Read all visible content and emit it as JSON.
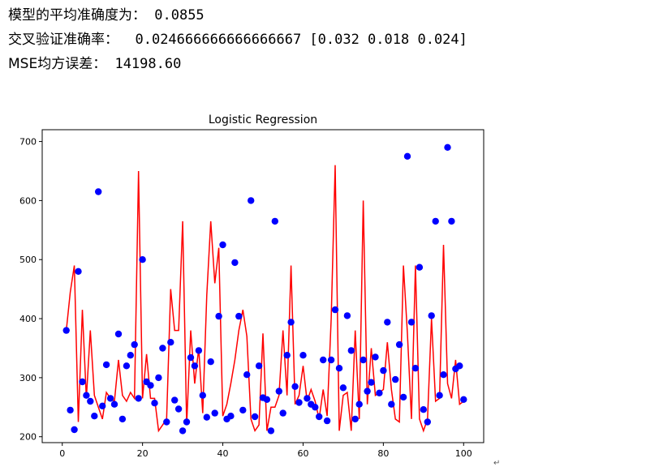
{
  "metrics": {
    "accuracy_label": "模型的平均准确度为：",
    "accuracy_value": "0.0855",
    "cv_label": "交叉验证准确率：",
    "cv_value": "0.024666666666666667 [0.032 0.018 0.024]",
    "mse_label": "MSE均方误差：",
    "mse_value": "14198.60"
  },
  "return_glyph": "↵",
  "chart_data": {
    "type": "scatter",
    "title": "Logistic Regression",
    "xlabel": "",
    "ylabel": "",
    "xlim": [
      -5,
      105
    ],
    "ylim": [
      190,
      720
    ],
    "xticks": [
      0,
      20,
      40,
      60,
      80,
      100
    ],
    "yticks": [
      200,
      300,
      400,
      500,
      600,
      700
    ],
    "grid": false,
    "series": [
      {
        "kind": "scatter",
        "color": "#0000ff",
        "x": [
          1,
          2,
          3,
          4,
          5,
          6,
          7,
          8,
          9,
          10,
          11,
          12,
          13,
          14,
          15,
          16,
          17,
          18,
          19,
          20,
          21,
          22,
          23,
          24,
          25,
          26,
          27,
          28,
          29,
          30,
          31,
          32,
          33,
          34,
          35,
          36,
          37,
          38,
          39,
          40,
          41,
          42,
          43,
          44,
          45,
          46,
          47,
          48,
          49,
          50,
          51,
          52,
          53,
          54,
          55,
          56,
          57,
          58,
          59,
          60,
          61,
          62,
          63,
          64,
          65,
          66,
          67,
          68,
          69,
          70,
          71,
          72,
          73,
          74,
          75,
          76,
          77,
          78,
          79,
          80,
          81,
          82,
          83,
          84,
          85,
          86,
          87,
          88,
          89,
          90,
          91,
          92,
          93,
          94,
          95,
          96,
          97,
          98,
          99,
          100
        ],
        "y": [
          380,
          245,
          212,
          480,
          293,
          270,
          260,
          235,
          615,
          252,
          322,
          265,
          255,
          374,
          230,
          320,
          338,
          356,
          265,
          500,
          293,
          287,
          257,
          300,
          350,
          225,
          360,
          262,
          247,
          210,
          225,
          334,
          320,
          346,
          270,
          233,
          327,
          240,
          404,
          525,
          230,
          235,
          495,
          404,
          245,
          305,
          600,
          234,
          320,
          266,
          263,
          210,
          565,
          277,
          240,
          338,
          394,
          285,
          258,
          338,
          265,
          255,
          250,
          234,
          330,
          227,
          330,
          415,
          316,
          283,
          405,
          346,
          230,
          255,
          330,
          277,
          292,
          335,
          274,
          312,
          394,
          255,
          297,
          356,
          267,
          675,
          394,
          316,
          487,
          246,
          225,
          405,
          565,
          270,
          305,
          690,
          565,
          315,
          320,
          263
        ]
      },
      {
        "kind": "line",
        "color": "#ff0000",
        "x": [
          1,
          2,
          3,
          4,
          5,
          6,
          7,
          8,
          9,
          10,
          11,
          12,
          13,
          14,
          15,
          16,
          17,
          18,
          19,
          20,
          21,
          22,
          23,
          24,
          25,
          26,
          27,
          28,
          29,
          30,
          31,
          32,
          33,
          34,
          35,
          36,
          37,
          38,
          39,
          40,
          41,
          42,
          43,
          44,
          45,
          46,
          47,
          48,
          49,
          50,
          51,
          52,
          53,
          54,
          55,
          56,
          57,
          58,
          59,
          60,
          61,
          62,
          63,
          64,
          65,
          66,
          67,
          68,
          69,
          70,
          71,
          72,
          73,
          74,
          75,
          76,
          77,
          78,
          79,
          80,
          81,
          82,
          83,
          84,
          85,
          86,
          87,
          88,
          89,
          90,
          91,
          92,
          93,
          94,
          95,
          96,
          97,
          98,
          99,
          100
        ],
        "y": [
          380,
          445,
          490,
          225,
          415,
          265,
          380,
          270,
          250,
          230,
          275,
          265,
          260,
          330,
          270,
          260,
          275,
          265,
          650,
          265,
          340,
          265,
          265,
          210,
          220,
          230,
          450,
          380,
          380,
          565,
          220,
          380,
          290,
          350,
          240,
          440,
          565,
          460,
          520,
          235,
          255,
          290,
          330,
          380,
          415,
          370,
          230,
          210,
          220,
          375,
          210,
          250,
          250,
          270,
          380,
          270,
          490,
          255,
          270,
          320,
          260,
          280,
          260,
          230,
          280,
          235,
          400,
          660,
          210,
          270,
          275,
          210,
          380,
          230,
          600,
          255,
          350,
          270,
          275,
          280,
          360,
          280,
          230,
          225,
          490,
          375,
          230,
          490,
          230,
          210,
          230,
          400,
          260,
          265,
          525,
          290,
          265,
          330,
          255,
          260
        ]
      }
    ]
  }
}
